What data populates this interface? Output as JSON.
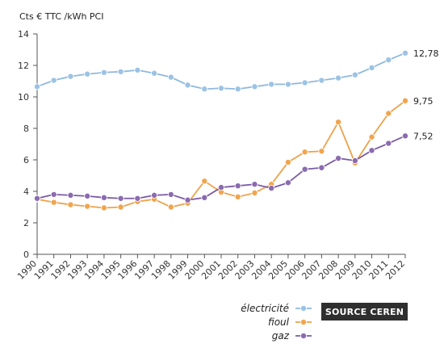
{
  "chart_data": {
    "type": "line",
    "unit_label": "Cts € TTC /kWh PCI",
    "categories": [
      "1990",
      "1991",
      "1992",
      "1993",
      "1994",
      "1995",
      "1996",
      "1997",
      "1998",
      "1999",
      "2000",
      "2001",
      "2002",
      "2003",
      "2004",
      "2005",
      "2006",
      "2007",
      "2008",
      "2009",
      "2010",
      "2011",
      "2012"
    ],
    "ylim": [
      0,
      14
    ],
    "yticks": [
      0,
      2,
      4,
      6,
      8,
      10,
      12,
      14
    ],
    "grid": false,
    "legend_position": "bottom-right",
    "series": [
      {
        "name": "électricité",
        "color": "#9cc3e4",
        "stroke": "#8fb9df",
        "end_label": "12,78",
        "values": [
          10.65,
          11.05,
          11.3,
          11.45,
          11.55,
          11.6,
          11.7,
          11.5,
          11.25,
          10.75,
          10.5,
          10.55,
          10.5,
          10.65,
          10.8,
          10.8,
          10.9,
          11.05,
          11.2,
          11.4,
          11.85,
          12.35,
          12.78
        ]
      },
      {
        "name": "fioul",
        "color": "#f0a54e",
        "stroke": "#eea248",
        "end_label": "9,75",
        "values": [
          3.5,
          3.3,
          3.15,
          3.05,
          2.95,
          3.0,
          3.35,
          3.5,
          3.0,
          3.25,
          4.65,
          3.95,
          3.65,
          3.9,
          4.45,
          5.85,
          6.5,
          6.55,
          8.4,
          5.8,
          7.45,
          8.95,
          9.75
        ]
      },
      {
        "name": "gaz",
        "color": "#8b6bb0",
        "stroke": "#7a5aa6",
        "end_label": "7,52",
        "values": [
          3.55,
          3.8,
          3.75,
          3.7,
          3.6,
          3.55,
          3.55,
          3.75,
          3.8,
          3.45,
          3.6,
          4.25,
          4.35,
          4.45,
          4.2,
          4.55,
          5.4,
          5.5,
          6.1,
          5.95,
          6.6,
          7.05,
          7.52
        ]
      }
    ],
    "source_label": "SOURCE CEREN"
  }
}
